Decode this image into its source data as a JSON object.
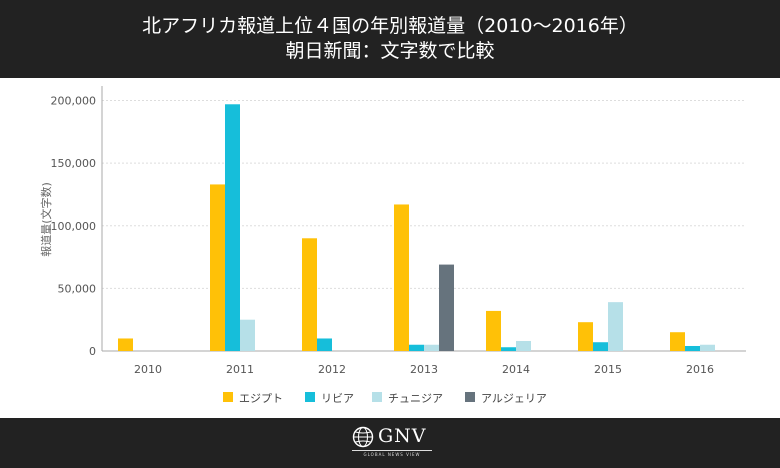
{
  "header": {
    "title_line1": "北アフリカ報道上位４国の年別報道量（2010〜2016年）",
    "title_line2": "朝日新聞：文字数で比較"
  },
  "footer": {
    "logo_text": "GNV",
    "logo_sub": "GLOBAL NEWS VIEW"
  },
  "chart_data": {
    "type": "bar",
    "title": "北アフリカ報道上位４国の年別報道量（2010〜2016年）",
    "subtitle": "朝日新聞：文字数で比較",
    "xlabel": "",
    "ylabel": "報道量(文字数)",
    "categories": [
      "2010",
      "2011",
      "2012",
      "2013",
      "2014",
      "2015",
      "2016"
    ],
    "ylim": [
      0,
      210000
    ],
    "yticks": [
      0,
      50000,
      100000,
      150000,
      200000
    ],
    "ytick_labels": [
      "0",
      "50,000",
      "100,000",
      "150,000",
      "200,000"
    ],
    "grid": true,
    "legend_position": "bottom",
    "series": [
      {
        "name": "エジプト",
        "color": "#FFC107",
        "values": [
          10000,
          133000,
          90000,
          117000,
          32000,
          23000,
          15000
        ]
      },
      {
        "name": "リビア",
        "color": "#16BEDA",
        "values": [
          0,
          197000,
          10000,
          5000,
          3000,
          7000,
          4000
        ]
      },
      {
        "name": "チュニジア",
        "color": "#B6E0E8",
        "values": [
          0,
          25000,
          0,
          5000,
          8000,
          39000,
          5000
        ]
      },
      {
        "name": "アルジェリア",
        "color": "#66737D",
        "values": [
          0,
          0,
          0,
          69000,
          0,
          0,
          0
        ]
      }
    ]
  }
}
